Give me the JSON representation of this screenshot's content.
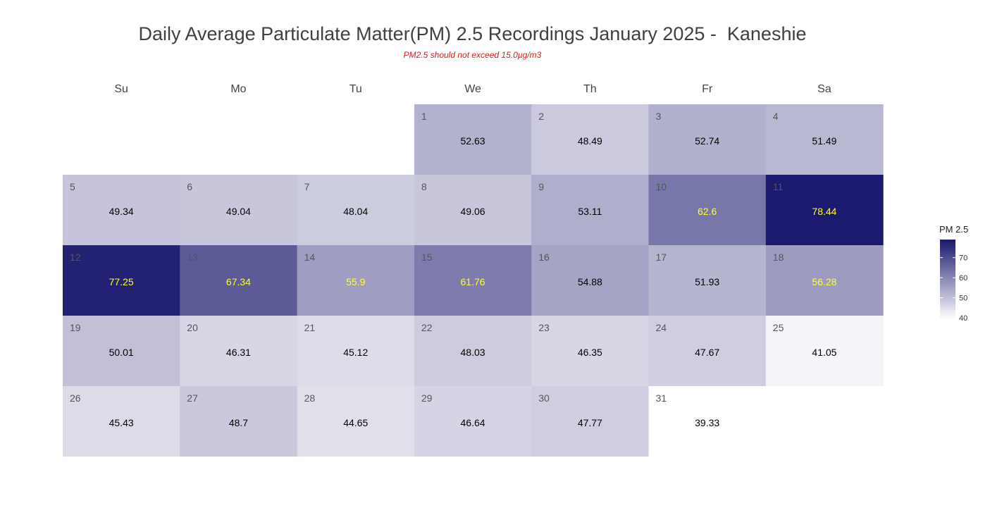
{
  "chart_data": {
    "type": "heatmap",
    "title": "Daily Average Particulate Matter(PM) 2.5 Recordings January 2025 -  Kaneshie",
    "subtitle": "PM2.5 should not exceed 15.0µg/m3",
    "weekdays": [
      "Su",
      "Mo",
      "Tu",
      "We",
      "Th",
      "Fr",
      "Sa"
    ],
    "first_weekday_index": 3,
    "days": [
      {
        "day": "1",
        "value": 52.63,
        "label": "52.63"
      },
      {
        "day": "2",
        "value": 48.49,
        "label": "48.49"
      },
      {
        "day": "3",
        "value": 52.74,
        "label": "52.74"
      },
      {
        "day": "4",
        "value": 51.49,
        "label": "51.49"
      },
      {
        "day": "5",
        "value": 49.34,
        "label": "49.34"
      },
      {
        "day": "6",
        "value": 49.04,
        "label": "49.04"
      },
      {
        "day": "7",
        "value": 48.04,
        "label": "48.04"
      },
      {
        "day": "8",
        "value": 49.06,
        "label": "49.06"
      },
      {
        "day": "9",
        "value": 53.11,
        "label": "53.11"
      },
      {
        "day": "10",
        "value": 62.6,
        "label": "62.6"
      },
      {
        "day": "11",
        "value": 78.44,
        "label": "78.44"
      },
      {
        "day": "12",
        "value": 77.25,
        "label": "77.25"
      },
      {
        "day": "13",
        "value": 67.34,
        "label": "67.34"
      },
      {
        "day": "14",
        "value": 55.9,
        "label": "55.9"
      },
      {
        "day": "15",
        "value": 61.76,
        "label": "61.76"
      },
      {
        "day": "16",
        "value": 54.88,
        "label": "54.88"
      },
      {
        "day": "17",
        "value": 51.93,
        "label": "51.93"
      },
      {
        "day": "18",
        "value": 56.28,
        "label": "56.28"
      },
      {
        "day": "19",
        "value": 50.01,
        "label": "50.01"
      },
      {
        "day": "20",
        "value": 46.31,
        "label": "46.31"
      },
      {
        "day": "21",
        "value": 45.12,
        "label": "45.12"
      },
      {
        "day": "22",
        "value": 48.03,
        "label": "48.03"
      },
      {
        "day": "23",
        "value": 46.35,
        "label": "46.35"
      },
      {
        "day": "24",
        "value": 47.67,
        "label": "47.67"
      },
      {
        "day": "25",
        "value": 41.05,
        "label": "41.05"
      },
      {
        "day": "26",
        "value": 45.43,
        "label": "45.43"
      },
      {
        "day": "27",
        "value": 48.7,
        "label": "48.7"
      },
      {
        "day": "28",
        "value": 44.65,
        "label": "44.65"
      },
      {
        "day": "29",
        "value": 46.64,
        "label": "46.64"
      },
      {
        "day": "30",
        "value": 47.77,
        "label": "47.77"
      },
      {
        "day": "31",
        "value": 39.33,
        "label": "39.33"
      }
    ],
    "color_scale": {
      "low_value": 39.33,
      "high_value": 78.44,
      "low_color": "#ffffff",
      "high_color": "#1c1a6e",
      "highlight_text_color": "#ffff33",
      "normal_text_color": "#000000"
    },
    "legend": {
      "title": "PM 2.5",
      "ticks": [
        40,
        50,
        60,
        70
      ],
      "placement": "right"
    }
  }
}
